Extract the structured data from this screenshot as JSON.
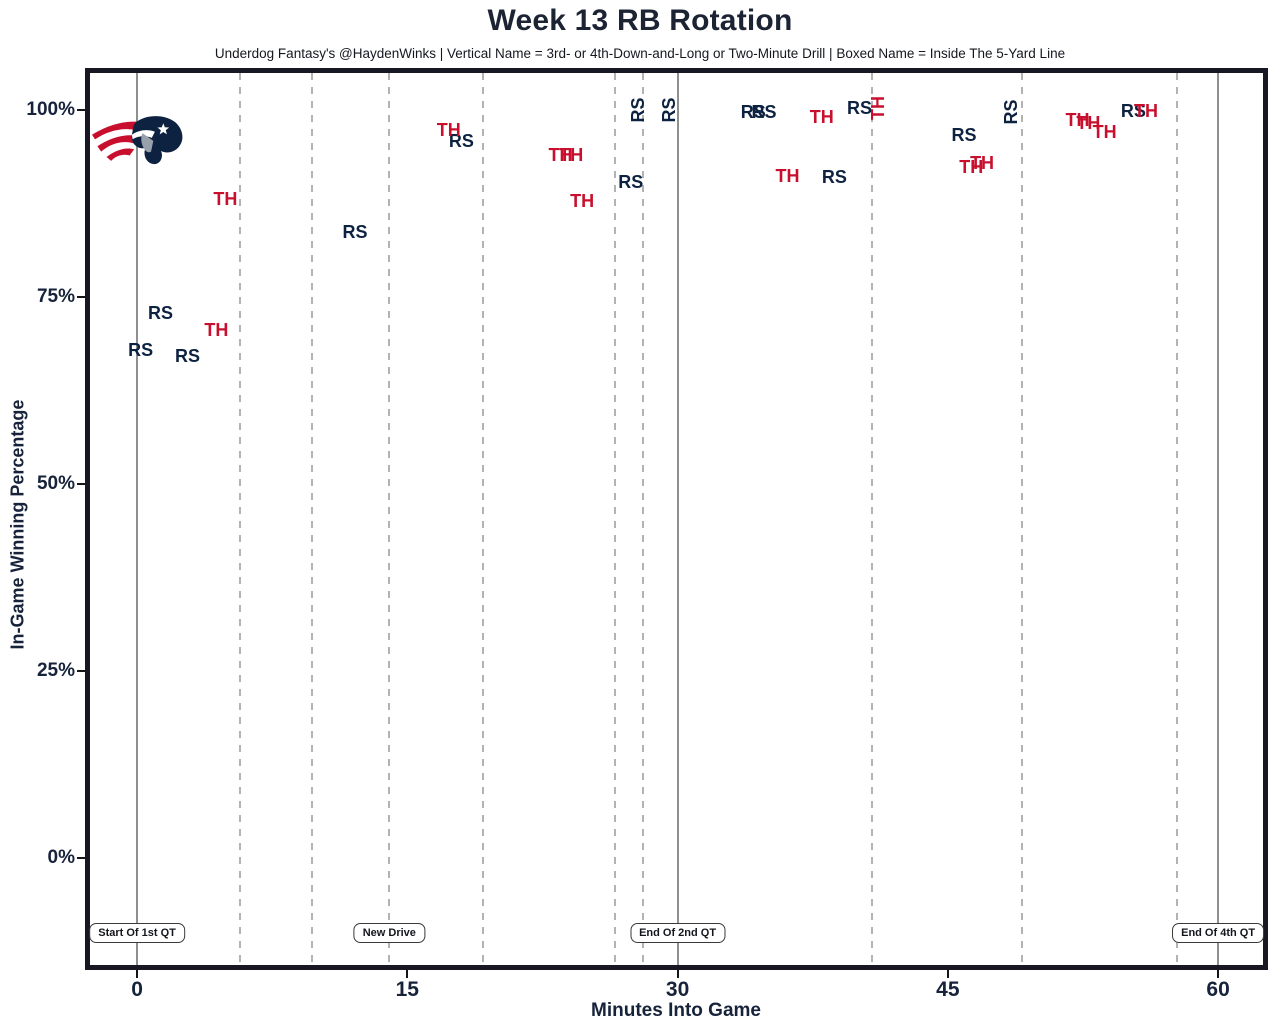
{
  "chart_data": {
    "type": "scatter",
    "title": "Week 13 RB Rotation",
    "subtitle": "Underdog Fantasy's @HaydenWinks | Vertical Name = 3rd- or 4th-Down-and-Long or Two-Minute Drill | Boxed Name = Inside The 5-Yard Line",
    "xlabel": "Minutes Into Game",
    "ylabel": "In-Game Winning Percentage",
    "xlim": [
      -2.89,
      62.77
    ],
    "ylim": [
      -14.97,
      105.62
    ],
    "x_ticks": [
      {
        "value": 0,
        "label": "0"
      },
      {
        "value": 15,
        "label": "15"
      },
      {
        "value": 30,
        "label": "30"
      },
      {
        "value": 45,
        "label": "45"
      },
      {
        "value": 60,
        "label": "60"
      }
    ],
    "y_ticks": [
      {
        "value": 100,
        "label": "100%"
      },
      {
        "value": 75,
        "label": "75%"
      },
      {
        "value": 50,
        "label": "50%"
      },
      {
        "value": 25,
        "label": "25%"
      },
      {
        "value": 0,
        "label": "0%"
      }
    ],
    "solid_vlines": [
      {
        "x": 0,
        "label": "Start Of 1st QT"
      },
      {
        "x": 30,
        "label": "End Of 2nd QT"
      },
      {
        "x": 60,
        "label": "End Of 4th QT"
      }
    ],
    "dashed_vlines": [
      5.7,
      9.7,
      14.0,
      19.2,
      26.5,
      28.1,
      40.8,
      49.1,
      57.7
    ],
    "drive_label": {
      "x": 14.0,
      "label": "New Drive"
    },
    "annotation_y": -10,
    "legend_position": "none",
    "grid": "vertical-only",
    "series": [
      {
        "name": "RS",
        "color": "#0d2240",
        "points": [
          {
            "x": 0.2,
            "y": 67.9
          },
          {
            "x": 1.3,
            "y": 72.9
          },
          {
            "x": 2.8,
            "y": 67.1
          },
          {
            "x": 12.1,
            "y": 83.7
          },
          {
            "x": 18.0,
            "y": 95.9
          },
          {
            "x": 27.4,
            "y": 90.4
          },
          {
            "x": 27.8,
            "y": 100.0,
            "vertical": true
          },
          {
            "x": 29.5,
            "y": 100.0,
            "vertical": true
          },
          {
            "x": 34.2,
            "y": 99.7
          },
          {
            "x": 34.8,
            "y": 99.7
          },
          {
            "x": 38.7,
            "y": 91.0
          },
          {
            "x": 40.1,
            "y": 100.3
          },
          {
            "x": 45.9,
            "y": 96.7
          },
          {
            "x": 48.5,
            "y": 99.7,
            "vertical": true
          },
          {
            "x": 55.3,
            "y": 99.9
          }
        ]
      },
      {
        "name": "TH",
        "color": "#c8102e",
        "points": [
          {
            "x": 4.4,
            "y": 70.6
          },
          {
            "x": 4.9,
            "y": 88.1
          },
          {
            "x": 17.3,
            "y": 97.3
          },
          {
            "x": 23.5,
            "y": 94.0
          },
          {
            "x": 24.1,
            "y": 94.0
          },
          {
            "x": 24.7,
            "y": 87.8
          },
          {
            "x": 36.1,
            "y": 91.2
          },
          {
            "x": 38.0,
            "y": 99.1
          },
          {
            "x": 41.1,
            "y": 100.3,
            "vertical": true
          },
          {
            "x": 46.3,
            "y": 92.4
          },
          {
            "x": 46.9,
            "y": 92.9
          },
          {
            "x": 52.2,
            "y": 98.7
          },
          {
            "x": 52.8,
            "y": 98.3
          },
          {
            "x": 53.7,
            "y": 97.1
          },
          {
            "x": 56.0,
            "y": 99.9
          }
        ]
      }
    ]
  },
  "logo": {
    "team": "New England Patriots"
  },
  "colors": {
    "navy": "#0d2240",
    "red": "#c8102e",
    "title_text": "#1c2434",
    "grid_dashed": "#b3b3b3",
    "grid_solid": "#8f8f8f",
    "plot_border": "#181824"
  }
}
